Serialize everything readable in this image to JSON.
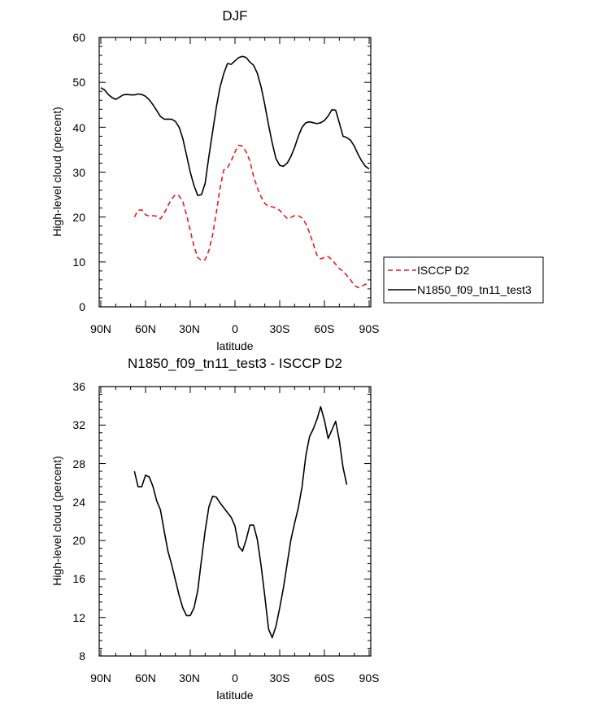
{
  "chart_data": [
    {
      "type": "line",
      "title": "DJF",
      "xlabel": "latitude",
      "ylabel": "High-level cloud (percent)",
      "xlim": [
        90,
        -90
      ],
      "ylim": [
        0,
        60
      ],
      "x_ticks": [
        90,
        60,
        30,
        0,
        -30,
        -60,
        -90
      ],
      "x_tick_labels": [
        "90N",
        "60N",
        "30N",
        "0",
        "30S",
        "60S",
        "90S"
      ],
      "y_ticks": [
        0,
        10,
        20,
        30,
        40,
        50,
        60
      ],
      "y_tick_labels": [
        "0",
        "10",
        "20",
        "30",
        "40",
        "50",
        "60"
      ],
      "legend": {
        "position": "right",
        "entries": [
          "ISCCP D2",
          "N1850_f09_tn11_test3"
        ]
      },
      "series": [
        {
          "name": "ISCCP D2",
          "color": "#e41a1c",
          "dash": true,
          "x": [
            67.5,
            65,
            62.5,
            60,
            57.5,
            55,
            52.5,
            50,
            47.5,
            45,
            42.5,
            40,
            37.5,
            35,
            32.5,
            30,
            27.5,
            25,
            22.5,
            20,
            17.5,
            15,
            12.5,
            10,
            7.5,
            5,
            2.5,
            0,
            -2.5,
            -5,
            -7.5,
            -10,
            -12.5,
            -15,
            -17.5,
            -20,
            -22.5,
            -25,
            -27.5,
            -30,
            -32.5,
            -35,
            -37.5,
            -40,
            -42.5,
            -45,
            -47.5,
            -50,
            -52.5,
            -55,
            -57.5,
            -60,
            -62.5,
            -65,
            -67.5,
            -70,
            -72.5,
            -75,
            -77.5,
            -80,
            -82.5,
            -85,
            -87.5,
            -90
          ],
          "values": [
            20.0,
            21.5,
            21.6,
            20.5,
            20.2,
            20.3,
            20.2,
            19.6,
            20.8,
            22.5,
            24.0,
            25.0,
            24.7,
            23.5,
            20.5,
            17.0,
            13.5,
            11.0,
            10.3,
            10.5,
            12.5,
            16.0,
            21.0,
            26.5,
            30.5,
            31.0,
            32.5,
            34.5,
            36.0,
            35.8,
            34.5,
            32.5,
            29.0,
            26.5,
            24.5,
            23.0,
            22.4,
            22.3,
            22.0,
            21.5,
            20.5,
            19.7,
            19.9,
            20.3,
            20.3,
            19.8,
            18.5,
            16.5,
            14.0,
            11.5,
            10.7,
            11.0,
            11.2,
            10.5,
            9.5,
            8.5,
            8.0,
            7.0,
            6.0,
            4.8,
            4.3,
            4.6,
            5.0,
            5.3
          ]
        },
        {
          "name": "N1850_f09_tn11_test3",
          "color": "#000000",
          "dash": false,
          "x": [
            90,
            87.5,
            85,
            82.5,
            80,
            77.5,
            75,
            72.5,
            70,
            67.5,
            65,
            62.5,
            60,
            57.5,
            55,
            52.5,
            50,
            47.5,
            45,
            42.5,
            40,
            37.5,
            35,
            32.5,
            30,
            27.5,
            25,
            22.5,
            20,
            17.5,
            15,
            12.5,
            10,
            7.5,
            5,
            2.5,
            0,
            -2.5,
            -5,
            -7.5,
            -10,
            -12.5,
            -15,
            -17.5,
            -20,
            -22.5,
            -25,
            -27.5,
            -30,
            -32.5,
            -35,
            -37.5,
            -40,
            -42.5,
            -45,
            -47.5,
            -50,
            -52.5,
            -55,
            -57.5,
            -60,
            -62.5,
            -65,
            -67.5,
            -70,
            -72.5,
            -75,
            -77.5,
            -80,
            -82.5,
            -85,
            -87.5,
            -90
          ],
          "values": [
            48.8,
            48.3,
            47.3,
            46.6,
            46.2,
            46.7,
            47.2,
            47.3,
            47.2,
            47.2,
            47.4,
            47.3,
            46.9,
            46.1,
            45.0,
            43.7,
            42.4,
            41.8,
            41.8,
            41.8,
            41.3,
            40.0,
            37.5,
            33.8,
            30.0,
            27.0,
            24.8,
            25.0,
            27.5,
            33.5,
            39.0,
            44.5,
            49.0,
            52.0,
            54.2,
            54.0,
            54.8,
            55.5,
            55.8,
            55.5,
            54.5,
            53.8,
            52.0,
            49.0,
            45.0,
            40.5,
            36.5,
            33.0,
            31.5,
            31.3,
            32.0,
            33.5,
            35.5,
            38.0,
            40.0,
            41.0,
            41.2,
            41.0,
            40.8,
            41.0,
            41.5,
            42.5,
            43.9,
            43.8,
            41.0,
            38.0,
            37.7,
            37.1,
            35.8,
            34.0,
            32.5,
            31.3,
            30.7
          ]
        }
      ]
    },
    {
      "type": "line",
      "title": "N1850_f09_tn11_test3 - ISCCP D2",
      "xlabel": "latitude",
      "ylabel": "High-level cloud (percent)",
      "xlim": [
        90,
        -90
      ],
      "ylim": [
        8,
        36
      ],
      "x_ticks": [
        90,
        60,
        30,
        0,
        -30,
        -60,
        -90
      ],
      "x_tick_labels": [
        "90N",
        "60N",
        "30N",
        "0",
        "30S",
        "60S",
        "90S"
      ],
      "y_ticks": [
        8,
        12,
        16,
        20,
        24,
        28,
        32,
        36
      ],
      "y_tick_labels": [
        "8",
        "12",
        "16",
        "20",
        "24",
        "28",
        "32",
        "36"
      ],
      "series": [
        {
          "name": "N1850_f09_tn11_test3 - ISCCP D2",
          "color": "#000000",
          "dash": false,
          "x": [
            67.5,
            65,
            62.5,
            60,
            57.5,
            55,
            52.5,
            50,
            47.5,
            45,
            42.5,
            40,
            37.5,
            35,
            32.5,
            30,
            27.5,
            25,
            22.5,
            20,
            17.5,
            15,
            12.5,
            10,
            7.5,
            5,
            2.5,
            0,
            -2.5,
            -5,
            -7.5,
            -10,
            -12.5,
            -15,
            -17.5,
            -20,
            -22.5,
            -25,
            -27.5,
            -30,
            -32.5,
            -35,
            -37.5,
            -40,
            -42.5,
            -45,
            -47.5,
            -50,
            -52.5,
            -55,
            -57.5,
            -60,
            -62.5,
            -65,
            -67.5,
            -70,
            -72.5,
            -75,
            -77.5,
            -80,
            -82.5,
            -85,
            -87.5,
            -90
          ],
          "values": [
            27.2,
            25.6,
            25.6,
            26.8,
            26.6,
            25.6,
            24.1,
            23.2,
            21.0,
            18.9,
            17.5,
            15.9,
            14.3,
            13.0,
            12.2,
            12.2,
            13.0,
            14.8,
            18.0,
            21.0,
            23.5,
            24.6,
            24.5,
            23.9,
            23.4,
            22.9,
            22.4,
            21.5,
            19.4,
            18.9,
            20.1,
            21.6,
            21.6,
            20.1,
            17.4,
            14.2,
            10.8,
            9.9,
            11.1,
            13.0,
            15.1,
            17.6,
            20.1,
            21.8,
            23.4,
            25.6,
            28.8,
            30.8,
            31.6,
            32.6,
            33.9,
            32.5,
            30.6,
            31.5,
            32.4,
            30.4,
            27.6,
            25.8,
            null,
            null,
            null,
            null,
            null,
            null
          ]
        }
      ]
    }
  ]
}
